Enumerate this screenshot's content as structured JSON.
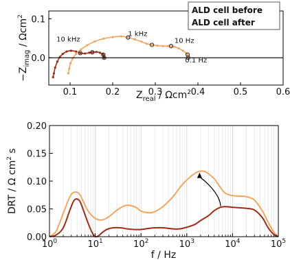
{
  "chart_data": [
    {
      "type": "scatter",
      "xlabel_main": "Z",
      "xlabel_sub": "real",
      "xlabel_unit": " / Ωcm",
      "xlabel_sup": "2",
      "ylabel_main": "−Z",
      "ylabel_sub": "imag",
      "ylabel_unit": " / Ωcm",
      "ylabel_sup": "2",
      "xlim": [
        0.05,
        0.6
      ],
      "ylim": [
        -0.07,
        0.12
      ],
      "xticks": [
        "0.1",
        "0.2",
        "0.3",
        "0.4",
        "0.5",
        "0.6"
      ],
      "yticks": [
        "0.0",
        "0.1"
      ],
      "legend": {
        "placement": "top-right",
        "entries": [
          {
            "label": "ALD cell before",
            "color": "#a32a12"
          },
          {
            "label": "ALD cell after",
            "color": "#f5a55c"
          }
        ]
      },
      "annotations": [
        {
          "text": "10 kHz",
          "x": 0.068,
          "y": 0.042
        },
        {
          "text": "1 kHz",
          "x": 0.236,
          "y": 0.056
        },
        {
          "text": "10 Hz",
          "x": 0.345,
          "y": 0.038
        },
        {
          "text": "0.1 Hz",
          "x": 0.37,
          "y": -0.012
        }
      ],
      "marked_points": {
        "after": [
          [
            0.236,
            0.052
          ],
          [
            0.292,
            0.033
          ],
          [
            0.337,
            0.03
          ],
          [
            0.376,
            0.008
          ],
          [
            0.377,
            0.0
          ]
        ],
        "before": [
          [
            0.124,
            0.012
          ],
          [
            0.152,
            0.014
          ],
          [
            0.178,
            0.008
          ],
          [
            0.18,
            0.0
          ]
        ]
      },
      "series": [
        {
          "name": "ALD cell before",
          "color": "#a32a12",
          "x": [
            0.06,
            0.062,
            0.065,
            0.07,
            0.076,
            0.083,
            0.092,
            0.102,
            0.114,
            0.124,
            0.135,
            0.145,
            0.152,
            0.162,
            0.17,
            0.176,
            0.178,
            0.179,
            0.18
          ],
          "y": [
            -0.05,
            -0.04,
            -0.025,
            -0.01,
            0.002,
            0.01,
            0.016,
            0.018,
            0.016,
            0.012,
            0.011,
            0.013,
            0.014,
            0.015,
            0.013,
            0.01,
            0.008,
            0.004,
            0.0
          ]
        },
        {
          "name": "ALD cell after",
          "color": "#f5a55c",
          "x": [
            0.096,
            0.098,
            0.101,
            0.106,
            0.114,
            0.125,
            0.14,
            0.158,
            0.178,
            0.2,
            0.22,
            0.236,
            0.252,
            0.268,
            0.28,
            0.292,
            0.305,
            0.318,
            0.33,
            0.337,
            0.345,
            0.355,
            0.365,
            0.372,
            0.376,
            0.377
          ],
          "y": [
            -0.04,
            -0.028,
            -0.014,
            -0.002,
            0.01,
            0.021,
            0.032,
            0.042,
            0.049,
            0.053,
            0.055,
            0.052,
            0.047,
            0.041,
            0.036,
            0.033,
            0.031,
            0.03,
            0.03,
            0.03,
            0.028,
            0.024,
            0.018,
            0.012,
            0.008,
            0.0
          ]
        }
      ]
    },
    {
      "type": "line",
      "xlabel": "f / Hz",
      "ylabel_main": "DRT / Ω cm",
      "ylabel_sup": "2",
      "ylabel_unit": " s",
      "xscale": "log",
      "xlim": [
        1,
        100000
      ],
      "ylim": [
        0,
        0.2
      ],
      "grid": "vertical minor+major",
      "xticks": [
        {
          "base": "10",
          "exp": "0"
        },
        {
          "base": "10",
          "exp": "1"
        },
        {
          "base": "10",
          "exp": "2"
        },
        {
          "base": "10",
          "exp": "3"
        },
        {
          "base": "10",
          "exp": "4"
        },
        {
          "base": "10",
          "exp": "5"
        }
      ],
      "yticks": [
        "0.00",
        "0.05",
        "0.10",
        "0.15",
        "0.20"
      ],
      "arrow": {
        "from": [
          5500,
          0.055
        ],
        "to": [
          1900,
          0.113
        ]
      },
      "series": [
        {
          "name": "ALD cell before",
          "color": "#a32a12",
          "x": [
            1.0,
            1.4,
            2.0,
            2.8,
            3.5,
            4.5,
            5.6,
            7.0,
            8.5,
            10,
            12,
            14,
            18,
            25,
            35,
            50,
            70,
            100,
            150,
            200,
            300,
            500,
            700,
            1000,
            1500,
            2000,
            3000,
            4000,
            5500,
            7000,
            10000,
            14000,
            20000,
            30000,
            45000,
            60000,
            80000,
            100000
          ],
          "y": [
            0.0,
            0.003,
            0.016,
            0.048,
            0.066,
            0.065,
            0.046,
            0.024,
            0.008,
            0.0,
            0.002,
            0.007,
            0.013,
            0.016,
            0.016,
            0.014,
            0.013,
            0.013,
            0.015,
            0.016,
            0.016,
            0.014,
            0.014,
            0.017,
            0.022,
            0.029,
            0.038,
            0.047,
            0.053,
            0.054,
            0.053,
            0.052,
            0.051,
            0.048,
            0.034,
            0.016,
            0.004,
            0.0
          ]
        },
        {
          "name": "ALD cell after",
          "color": "#f5a55c",
          "x": [
            1.0,
            1.4,
            2.0,
            2.8,
            3.5,
            4.5,
            5.6,
            7.0,
            10,
            14,
            20,
            30,
            45,
            60,
            80,
            100,
            150,
            200,
            300,
            500,
            700,
            1000,
            1500,
            2000,
            2500,
            3000,
            4000,
            5500,
            7000,
            10000,
            14000,
            20000,
            30000,
            45000,
            60000,
            80000,
            100000
          ],
          "y": [
            0.0,
            0.01,
            0.042,
            0.072,
            0.08,
            0.077,
            0.062,
            0.046,
            0.033,
            0.03,
            0.036,
            0.048,
            0.056,
            0.056,
            0.052,
            0.046,
            0.043,
            0.045,
            0.054,
            0.072,
            0.088,
            0.102,
            0.114,
            0.118,
            0.117,
            0.113,
            0.104,
            0.088,
            0.078,
            0.074,
            0.073,
            0.072,
            0.066,
            0.046,
            0.026,
            0.008,
            0.0
          ]
        }
      ]
    }
  ]
}
